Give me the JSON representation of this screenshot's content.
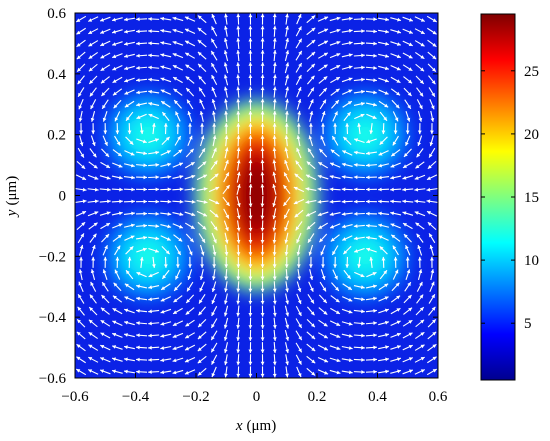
{
  "chart_data": {
    "type": "heatmap",
    "title": "",
    "xlabel": {
      "var": "x",
      "unit": "(μm)"
    },
    "ylabel": {
      "var": "y",
      "unit": "(μm)"
    },
    "xlim": [
      -0.6,
      0.6
    ],
    "ylim": [
      -0.6,
      0.6
    ],
    "xticks": [
      -0.6,
      -0.4,
      -0.2,
      0,
      0.2,
      0.4,
      0.6
    ],
    "yticks": [
      -0.6,
      -0.4,
      -0.2,
      0,
      0.2,
      0.4,
      0.6
    ],
    "xtick_labels": [
      "−0.6",
      "−0.4",
      "−0.2",
      "0",
      "0.2",
      "0.4",
      "0.6"
    ],
    "ytick_labels": [
      "−0.6",
      "−0.4",
      "−0.2",
      "0",
      "0.2",
      "0.4",
      "0.6"
    ],
    "colorbar": {
      "range": [
        0.5,
        29.5
      ],
      "ticks": [
        5,
        10,
        15,
        20,
        25
      ],
      "tick_labels": [
        "5",
        "10",
        "15",
        "20",
        "25"
      ],
      "colormap": "jet"
    },
    "field_intensity_peaks": [
      {
        "x": 0,
        "y": 0,
        "value": 29,
        "shape": "vertical-ellipse"
      },
      {
        "x": -0.36,
        "y": 0.2,
        "value": 12
      },
      {
        "x": 0.36,
        "y": 0.2,
        "value": 12
      },
      {
        "x": -0.36,
        "y": -0.2,
        "value": 12
      },
      {
        "x": 0.36,
        "y": -0.2,
        "value": 12
      }
    ],
    "background_value": 2,
    "overlay": "white arrow vector field",
    "grid": false,
    "legend": "none"
  }
}
